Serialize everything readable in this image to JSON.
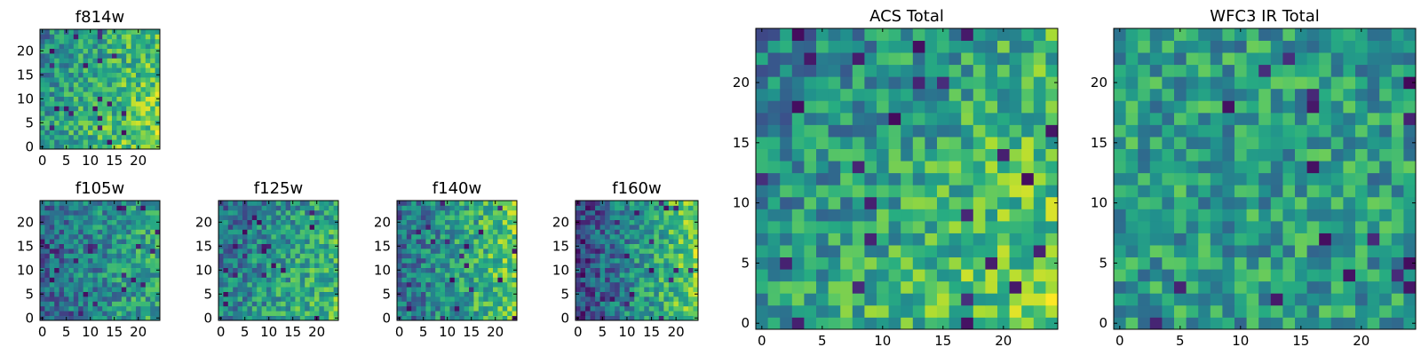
{
  "colormap": "viridis",
  "colors": {
    "viridis_stops": [
      "#440154",
      "#472c7a",
      "#3b518b",
      "#2c718e",
      "#21908d",
      "#27ad81",
      "#5cc863",
      "#aadc32",
      "#fde725"
    ]
  },
  "chart_data": [
    {
      "id": "f814w",
      "type": "heatmap",
      "title": "f814w",
      "grid_size": 25,
      "xlim": [
        0,
        24
      ],
      "ylim": [
        0,
        24
      ],
      "xticks": [
        "0",
        "5",
        "10",
        "15",
        "20"
      ],
      "yticks": [
        "0",
        "5",
        "10",
        "15",
        "20"
      ],
      "value_range": [
        0,
        1
      ],
      "tendency": "brighter toward lower-right, darker patch upper-left/center",
      "seed": 11
    },
    {
      "id": "f105w",
      "type": "heatmap",
      "title": "f105w",
      "grid_size": 25,
      "xlim": [
        0,
        24
      ],
      "ylim": [
        0,
        24
      ],
      "xticks": [
        "0",
        "5",
        "10",
        "15",
        "20"
      ],
      "yticks": [
        "0",
        "5",
        "10",
        "15",
        "20"
      ],
      "value_range": [
        0,
        1
      ],
      "tendency": "darker overall, brighter right edge",
      "seed": 23
    },
    {
      "id": "f125w",
      "type": "heatmap",
      "title": "f125w",
      "grid_size": 25,
      "xlim": [
        0,
        24
      ],
      "ylim": [
        0,
        24
      ],
      "xticks": [
        "0",
        "5",
        "10",
        "15",
        "20"
      ],
      "yticks": [
        "0",
        "5",
        "10",
        "15",
        "20"
      ],
      "value_range": [
        0,
        1
      ],
      "tendency": "mixed, brighter lower-right",
      "seed": 37
    },
    {
      "id": "f140w",
      "type": "heatmap",
      "title": "f140w",
      "grid_size": 25,
      "xlim": [
        0,
        24
      ],
      "ylim": [
        0,
        24
      ],
      "xticks": [
        "0",
        "5",
        "10",
        "15",
        "20"
      ],
      "yticks": [
        "0",
        "5",
        "10",
        "15",
        "20"
      ],
      "value_range": [
        0,
        1
      ],
      "tendency": "darker left, bright right edge",
      "seed": 41
    },
    {
      "id": "f160w",
      "type": "heatmap",
      "title": "f160w",
      "grid_size": 25,
      "xlim": [
        0,
        24
      ],
      "ylim": [
        0,
        24
      ],
      "xticks": [
        "0",
        "5",
        "10",
        "15",
        "20"
      ],
      "yticks": [
        "0",
        "5",
        "10",
        "15",
        "20"
      ],
      "value_range": [
        0,
        1
      ],
      "tendency": "dark left side, bright right side",
      "seed": 53
    },
    {
      "id": "acs_total",
      "type": "heatmap",
      "title": "ACS Total",
      "grid_size": 25,
      "xlim": [
        0,
        24
      ],
      "ylim": [
        0,
        24
      ],
      "xticks": [
        "0",
        "5",
        "10",
        "15",
        "20"
      ],
      "yticks": [
        "0",
        "5",
        "10",
        "15",
        "20"
      ],
      "value_range": [
        0,
        1
      ],
      "tendency": "brighter lower-right, dark spots upper-left",
      "seed": 67
    },
    {
      "id": "wfc3_ir_total",
      "type": "heatmap",
      "title": "WFC3 IR Total",
      "grid_size": 25,
      "xlim": [
        0,
        24
      ],
      "ylim": [
        0,
        24
      ],
      "xticks": [
        "0",
        "5",
        "10",
        "15",
        "20"
      ],
      "yticks": [
        "0",
        "5",
        "10",
        "15",
        "20"
      ],
      "value_range": [
        0,
        1
      ],
      "tendency": "mixed green/teal noise",
      "seed": 79
    }
  ]
}
